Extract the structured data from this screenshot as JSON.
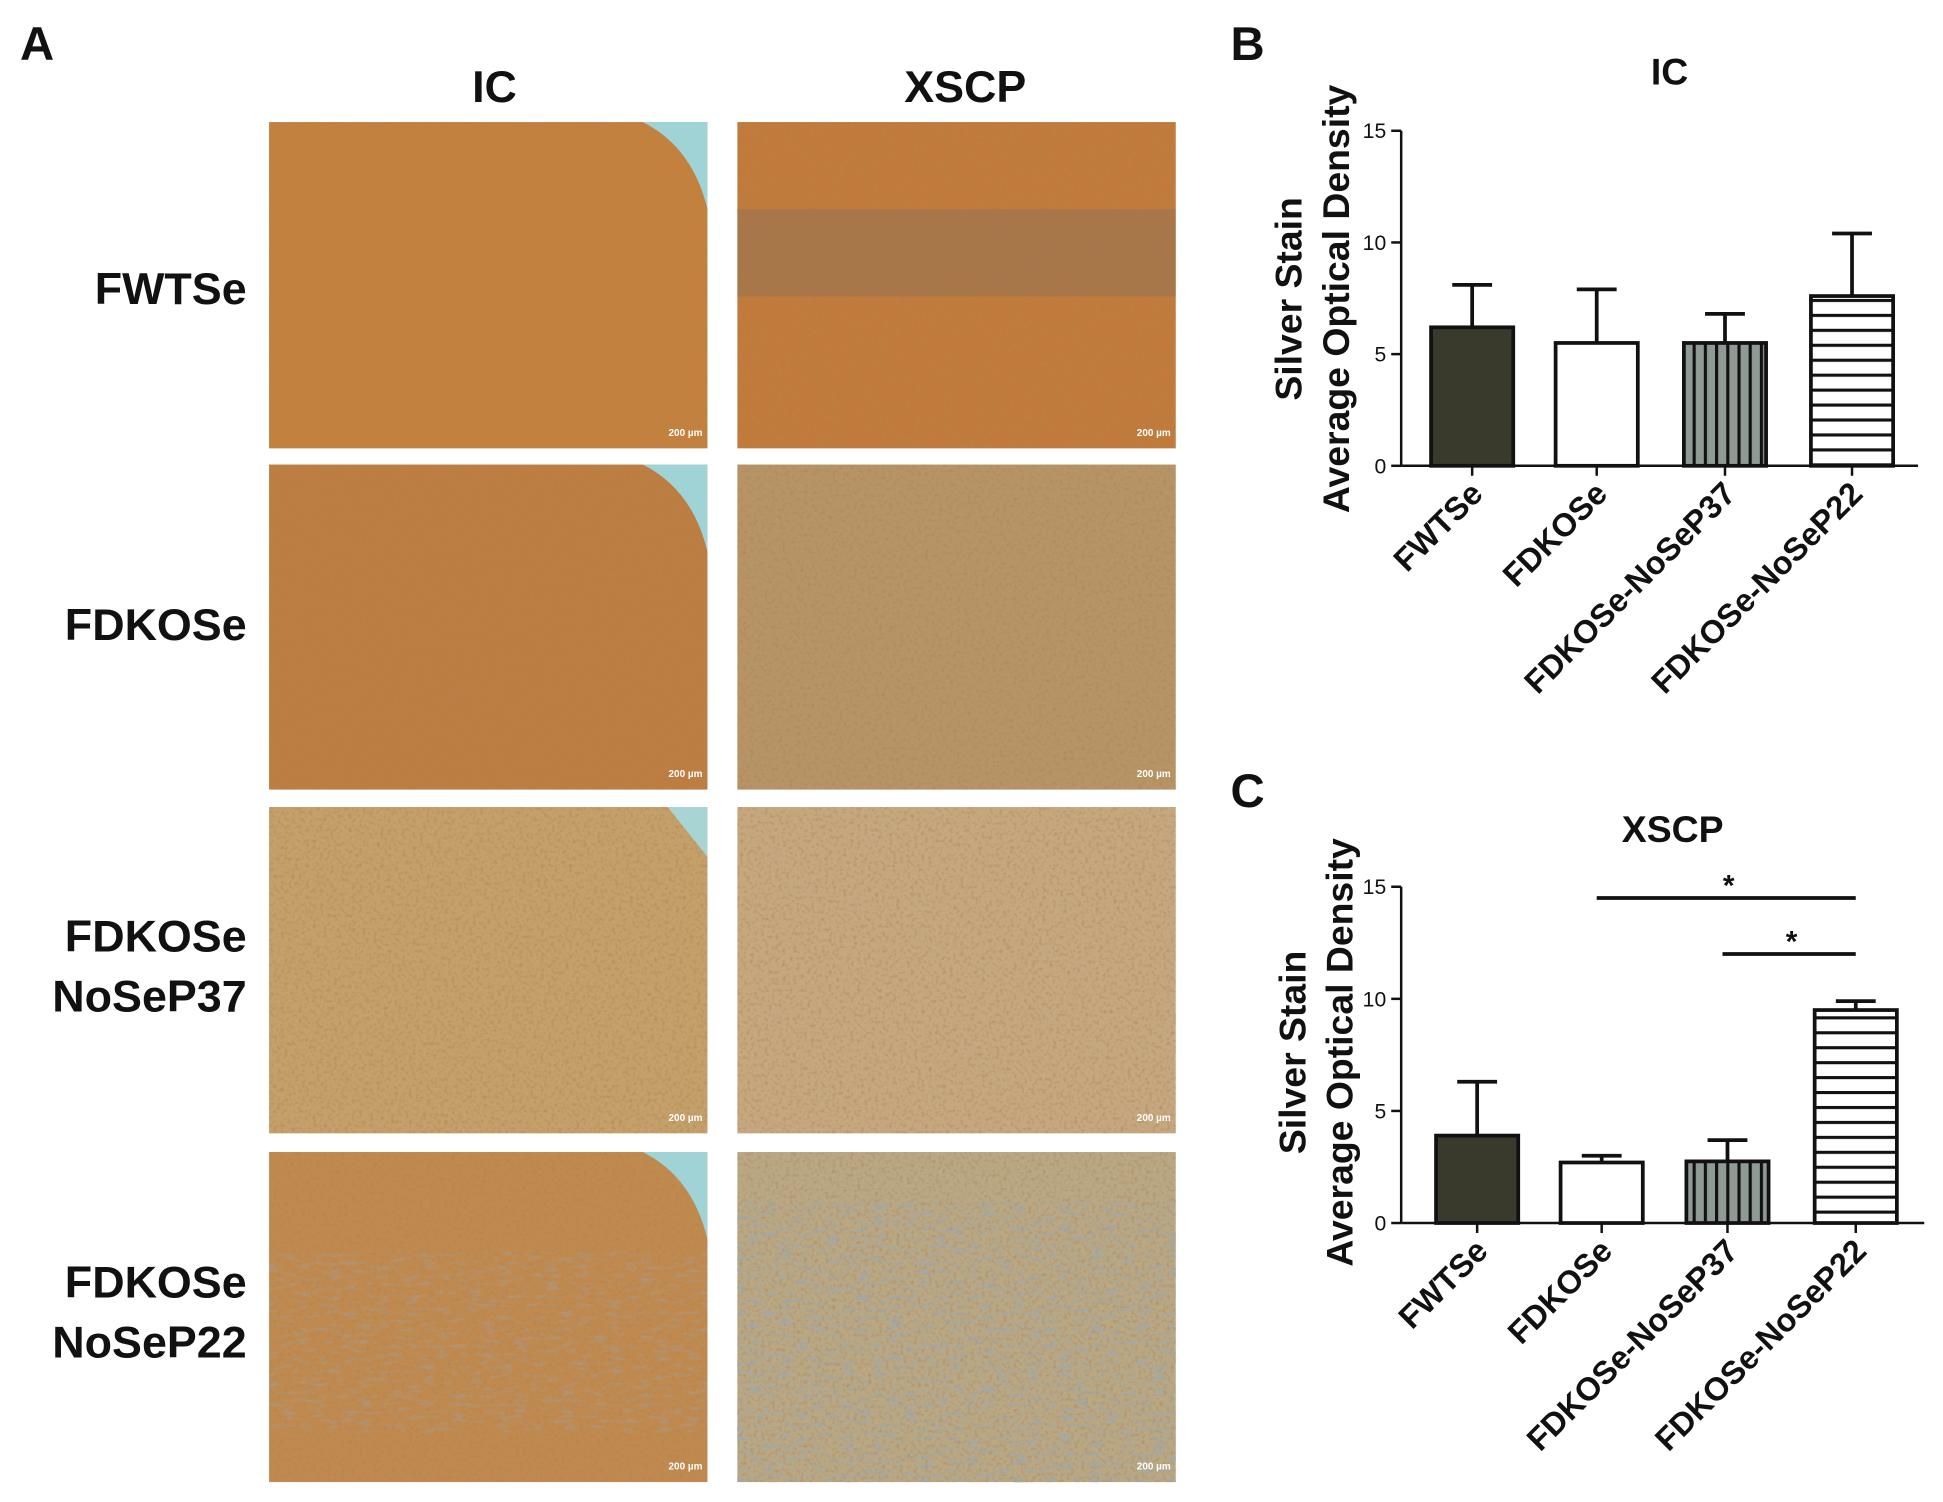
{
  "figure": {
    "panel_labels": [
      "A",
      "B",
      "C"
    ],
    "column_labels": [
      "IC",
      "XSCP"
    ],
    "row_labels": [
      [
        "FWTSe"
      ],
      [
        "FDKOSe"
      ],
      [
        "FDKOSe",
        "NoSeP37"
      ],
      [
        "FDKOSe",
        "NoSeP22"
      ]
    ],
    "scale_bar": "200 µm"
  },
  "chart_data": [
    {
      "type": "bar",
      "title": "IC",
      "ylabel": [
        "Silver Stain",
        "Average Optical Density"
      ],
      "categories": [
        "FWTSe",
        "FDKOSe",
        "FDKOSe-NoSeP37",
        "FDKOSe-NoSeP22"
      ],
      "values": [
        6.2,
        5.5,
        5.5,
        7.6
      ],
      "errors": [
        1.9,
        2.4,
        1.3,
        2.8
      ],
      "colors": [
        "#3a3a2c",
        "#ffffff",
        "#8e9a93",
        "#ffffff"
      ],
      "hatches": [
        "none",
        "none",
        "vertical",
        "horizontal"
      ],
      "ylim": [
        0,
        15
      ],
      "yticks": [
        0,
        5,
        10,
        15
      ]
    },
    {
      "type": "bar",
      "title": "XSCP",
      "ylabel": [
        "Silver Stain",
        "Average Optical Density"
      ],
      "categories": [
        "FWTSe",
        "FDKOSe",
        "FDKOSe-NoSeP37",
        "FDKOSe-NoSeP22"
      ],
      "values": [
        3.9,
        2.7,
        2.75,
        9.5
      ],
      "errors": [
        2.4,
        0.3,
        0.95,
        0.4
      ],
      "colors": [
        "#3a3a2c",
        "#ffffff",
        "#8e9a93",
        "#ffffff"
      ],
      "hatches": [
        "none",
        "none",
        "vertical",
        "horizontal"
      ],
      "ylim": [
        0,
        15
      ],
      "yticks": [
        0,
        5,
        10,
        15
      ],
      "significance": [
        {
          "label": "*",
          "between": [
            "FDKOSe",
            "FDKOSe-NoSeP22"
          ]
        },
        {
          "label": "*",
          "between": [
            "FDKOSe-NoSeP37",
            "FDKOSe-NoSeP22"
          ]
        }
      ]
    }
  ]
}
